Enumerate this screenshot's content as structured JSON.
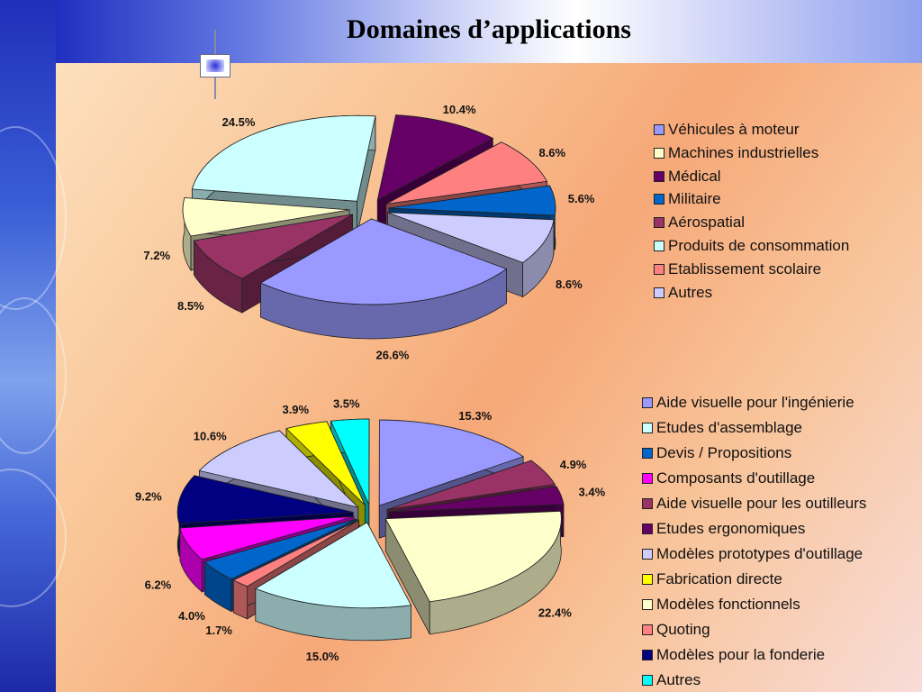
{
  "title": "Domaines d’applications",
  "chart_data": [
    {
      "type": "pie",
      "series": [
        {
          "label": "Véhicules à moteur",
          "value": 26.6,
          "color": "#9999ff"
        },
        {
          "label": "Machines industrielles",
          "value": 7.2,
          "color": "#ffffcc"
        },
        {
          "label": "Médical",
          "value": 10.4,
          "color": "#660066"
        },
        {
          "label": "Militaire",
          "value": 5.6,
          "color": "#0066cc"
        },
        {
          "label": "Aérospatial",
          "value": 8.5,
          "color": "#993366"
        },
        {
          "label": "Produits de consommation",
          "value": 24.5,
          "color": "#ccffff"
        },
        {
          "label": "Etablissement scolaire",
          "value": 8.6,
          "color": "#ff8080"
        },
        {
          "label": "Autres",
          "value": 8.6,
          "color": "#ccccff"
        }
      ],
      "value_labels": [
        "26.6%",
        "7.2%",
        "10.4%",
        "5.6%",
        "8.5%",
        "24.5%",
        "8.6%",
        "8.6%"
      ],
      "legend": "right"
    },
    {
      "type": "pie",
      "series": [
        {
          "label": "Aide visuelle pour l'ingénierie",
          "value": 15.3,
          "color": "#9999ff"
        },
        {
          "label": "Etudes d'assemblage",
          "value": 15.0,
          "color": "#ccffff"
        },
        {
          "label": "Devis / Propositions",
          "value": 4.0,
          "color": "#0066cc"
        },
        {
          "label": "Composants d'outillage",
          "value": 6.2,
          "color": "#ff00ff"
        },
        {
          "label": "Aide visuelle pour les outilleurs",
          "value": 4.9,
          "color": "#993366"
        },
        {
          "label": "Etudes ergonomiques",
          "value": 3.4,
          "color": "#660066"
        },
        {
          "label": "Modèles prototypes d'outillage",
          "value": 10.6,
          "color": "#ccccff"
        },
        {
          "label": "Fabrication directe",
          "value": 3.9,
          "color": "#ffff00"
        },
        {
          "label": "Modèles fonctionnels",
          "value": 22.4,
          "color": "#ffffcc"
        },
        {
          "label": "Quoting",
          "value": 1.7,
          "color": "#ff8080"
        },
        {
          "label": "Modèles pour la fonderie",
          "value": 9.2,
          "color": "#000080"
        },
        {
          "label": "Autres",
          "value": 3.5,
          "color": "#00ffff"
        }
      ],
      "value_labels": [
        "15.3%",
        "15.0%",
        "4.0%",
        "6.2%",
        "4.9%",
        "3.4%",
        "10.6%",
        "3.9%",
        "22.4%",
        "1.7%",
        "9.2%",
        "3.5%"
      ],
      "legend": "right"
    }
  ]
}
